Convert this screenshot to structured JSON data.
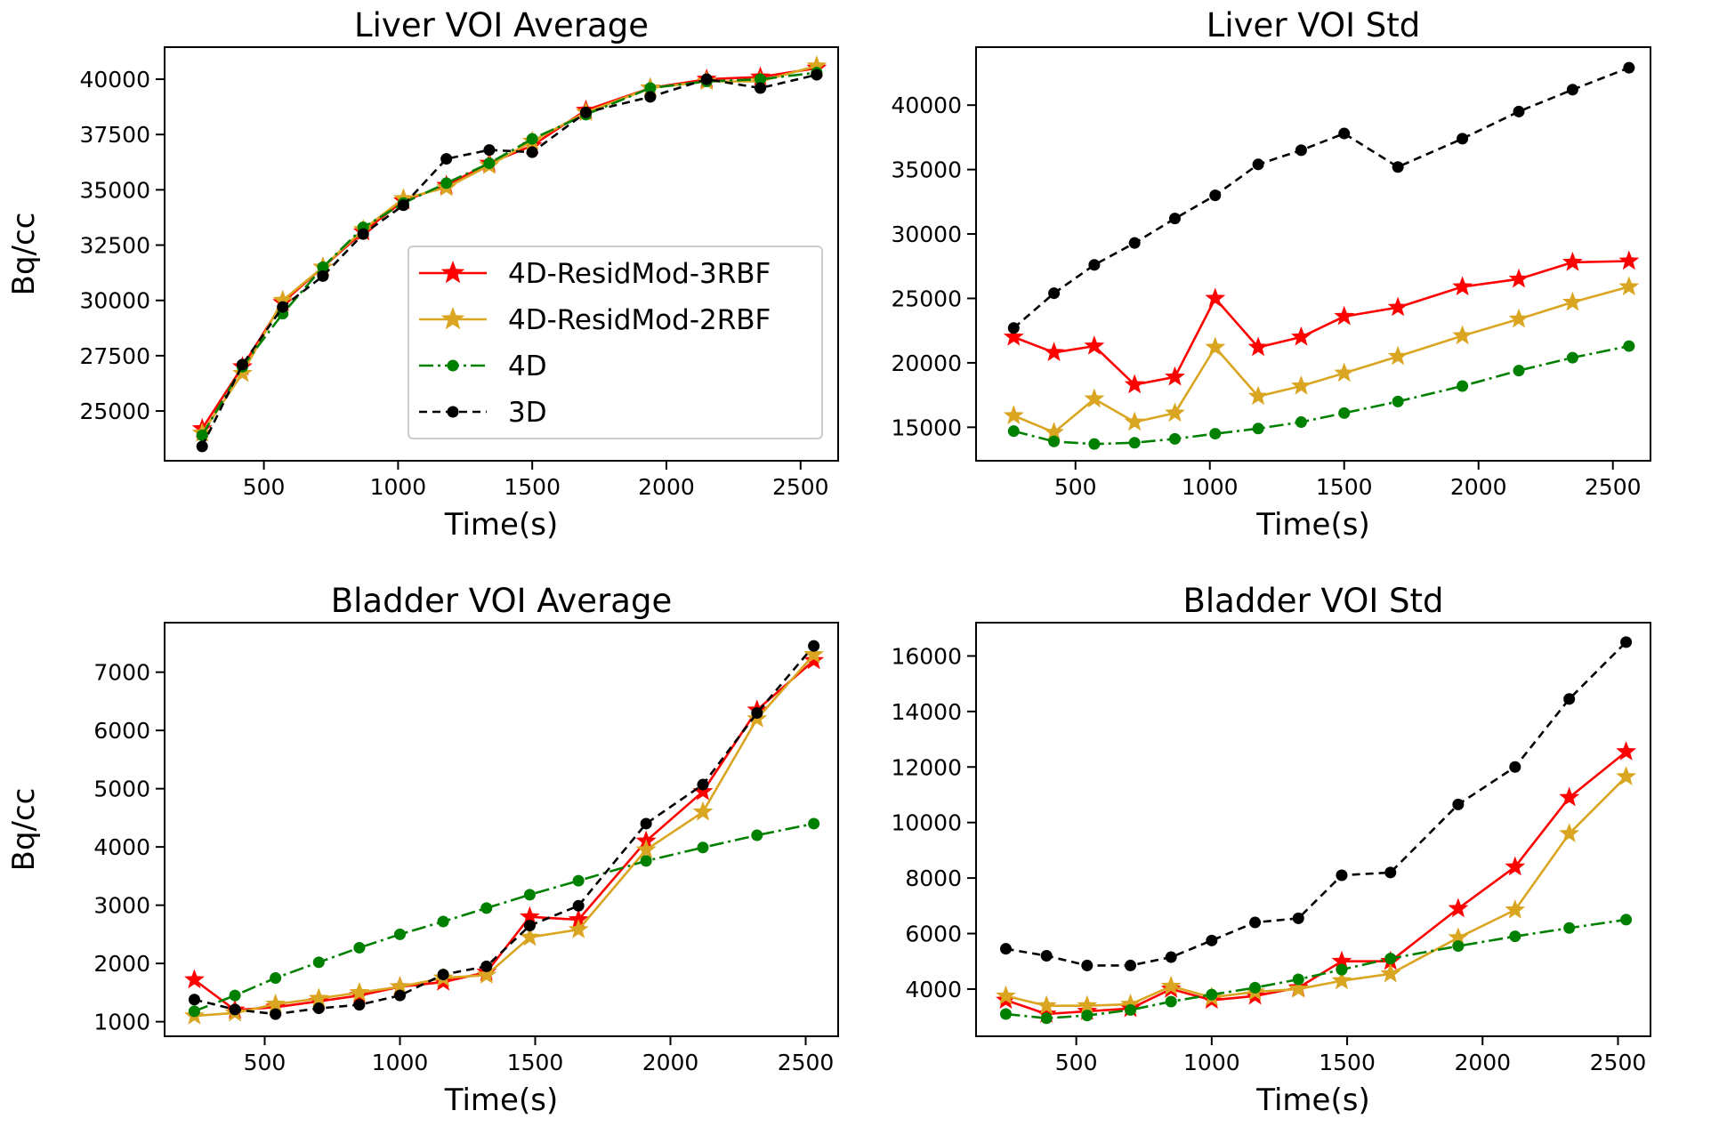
{
  "colors": {
    "red": "#ff0000",
    "gold": "#daa520",
    "green": "#008000",
    "black": "#000000"
  },
  "chart_data": [
    {
      "type": "line",
      "title": "Liver VOI Average",
      "xlabel": "Time(s)",
      "ylabel": "Bq/cc",
      "xlim": [
        130,
        2640
      ],
      "ylim": [
        22750,
        41450
      ],
      "xticks": [
        500,
        1000,
        1500,
        2000,
        2500
      ],
      "yticks": [
        25000,
        27500,
        30000,
        32500,
        35000,
        37500,
        40000
      ],
      "x": [
        270,
        420,
        570,
        720,
        870,
        1020,
        1180,
        1340,
        1500,
        1700,
        1940,
        2150,
        2350,
        2560
      ],
      "legend": "inside-lower-right",
      "series": [
        {
          "name": "4D-ResidMod-3RBF",
          "style": "red-star-solid",
          "values": [
            24200,
            27000,
            29900,
            31500,
            33100,
            34500,
            35200,
            36200,
            37000,
            38600,
            39600,
            40000,
            40100,
            40500
          ]
        },
        {
          "name": "4D-ResidMod-2RBF",
          "style": "gold-star-solid",
          "values": [
            24000,
            26700,
            30000,
            31500,
            33200,
            34600,
            35100,
            36100,
            37200,
            38500,
            39600,
            39900,
            39900,
            40600
          ]
        },
        {
          "name": "4D",
          "style": "green-dot-dashdot",
          "values": [
            23900,
            27000,
            29400,
            31500,
            33300,
            34400,
            35300,
            36200,
            37300,
            38400,
            39600,
            39900,
            40000,
            40300
          ]
        },
        {
          "name": "3D",
          "style": "black-dot-dashed",
          "values": [
            23400,
            27100,
            29700,
            31100,
            33000,
            34300,
            36400,
            36800,
            36700,
            38500,
            39200,
            40000,
            39600,
            40200
          ]
        }
      ]
    },
    {
      "type": "line",
      "title": "Liver VOI Std",
      "xlabel": "Time(s)",
      "ylabel": "",
      "xlim": [
        130,
        2640
      ],
      "ylim": [
        12400,
        44500
      ],
      "xticks": [
        500,
        1000,
        1500,
        2000,
        2500
      ],
      "yticks": [
        15000,
        20000,
        25000,
        30000,
        35000,
        40000
      ],
      "x": [
        270,
        420,
        570,
        720,
        870,
        1020,
        1180,
        1340,
        1500,
        1700,
        1940,
        2150,
        2350,
        2560
      ],
      "series": [
        {
          "name": "4D-ResidMod-3RBF",
          "style": "red-star-solid",
          "values": [
            22000,
            20800,
            21300,
            18300,
            18900,
            25000,
            21200,
            22000,
            23600,
            24300,
            25900,
            26500,
            27800,
            27900
          ]
        },
        {
          "name": "4D-ResidMod-2RBF",
          "style": "gold-star-solid",
          "values": [
            15900,
            14600,
            17200,
            15400,
            16100,
            21200,
            17400,
            18200,
            19200,
            20500,
            22100,
            23400,
            24700,
            25900
          ]
        },
        {
          "name": "4D",
          "style": "green-dot-dashdot",
          "values": [
            14700,
            13900,
            13700,
            13800,
            14100,
            14500,
            14900,
            15400,
            16100,
            17000,
            18200,
            19400,
            20400,
            21300
          ]
        },
        {
          "name": "3D",
          "style": "black-dot-dashed",
          "values": [
            22700,
            25400,
            27600,
            29300,
            31200,
            33000,
            35400,
            36500,
            37800,
            35200,
            37400,
            39500,
            41200,
            42900
          ]
        }
      ]
    },
    {
      "type": "line",
      "title": "Bladder VOI Average",
      "xlabel": "Time(s)",
      "ylabel": "Bq/cc",
      "xlim": [
        130,
        2620
      ],
      "ylim": [
        750,
        7850
      ],
      "xticks": [
        500,
        1000,
        1500,
        2000,
        2500
      ],
      "yticks": [
        1000,
        2000,
        3000,
        4000,
        5000,
        6000,
        7000
      ],
      "x": [
        240,
        390,
        540,
        700,
        850,
        1000,
        1160,
        1320,
        1480,
        1660,
        1910,
        2120,
        2320,
        2530
      ],
      "series": [
        {
          "name": "4D-ResidMod-3RBF",
          "style": "red-star-solid",
          "values": [
            1720,
            1200,
            1250,
            1350,
            1450,
            1600,
            1680,
            1850,
            2800,
            2750,
            4100,
            4950,
            6350,
            7200
          ]
        },
        {
          "name": "4D-ResidMod-2RBF",
          "style": "gold-star-solid",
          "values": [
            1100,
            1150,
            1300,
            1400,
            1500,
            1600,
            1750,
            1800,
            2450,
            2580,
            3950,
            4600,
            6200,
            7300
          ]
        },
        {
          "name": "4D",
          "style": "green-dot-dashdot",
          "values": [
            1180,
            1450,
            1750,
            2020,
            2270,
            2500,
            2720,
            2950,
            3180,
            3420,
            3760,
            3990,
            4200,
            4400
          ]
        },
        {
          "name": "3D",
          "style": "black-dot-dashed",
          "values": [
            1380,
            1210,
            1130,
            1230,
            1290,
            1450,
            1810,
            1950,
            2650,
            2990,
            4400,
            5070,
            6300,
            7450
          ]
        }
      ]
    },
    {
      "type": "line",
      "title": "Bladder VOI Std",
      "xlabel": "Time(s)",
      "ylabel": "",
      "xlim": [
        130,
        2620
      ],
      "ylim": [
        2300,
        17200
      ],
      "xticks": [
        500,
        1000,
        1500,
        2000,
        2500
      ],
      "yticks": [
        4000,
        6000,
        8000,
        10000,
        12000,
        14000,
        16000
      ],
      "x": [
        240,
        390,
        540,
        700,
        850,
        1000,
        1160,
        1320,
        1480,
        1660,
        1910,
        2120,
        2320,
        2530
      ],
      "series": [
        {
          "name": "4D-ResidMod-3RBF",
          "style": "red-star-solid",
          "values": [
            3600,
            3100,
            3200,
            3300,
            4000,
            3600,
            3750,
            4050,
            5000,
            5000,
            6900,
            8400,
            10900,
            12550
          ]
        },
        {
          "name": "4D-ResidMod-2RBF",
          "style": "gold-star-solid",
          "values": [
            3750,
            3400,
            3400,
            3450,
            4100,
            3700,
            3900,
            4000,
            4300,
            4550,
            5850,
            6850,
            9600,
            11650
          ]
        },
        {
          "name": "4D",
          "style": "green-dot-dashdot",
          "values": [
            3100,
            2950,
            3050,
            3250,
            3550,
            3800,
            4050,
            4350,
            4700,
            5100,
            5550,
            5900,
            6200,
            6500
          ]
        },
        {
          "name": "3D",
          "style": "black-dot-dashed",
          "values": [
            5450,
            5200,
            4850,
            4850,
            5150,
            5750,
            6400,
            6550,
            8100,
            8200,
            10650,
            12000,
            14450,
            16500
          ]
        }
      ]
    }
  ]
}
